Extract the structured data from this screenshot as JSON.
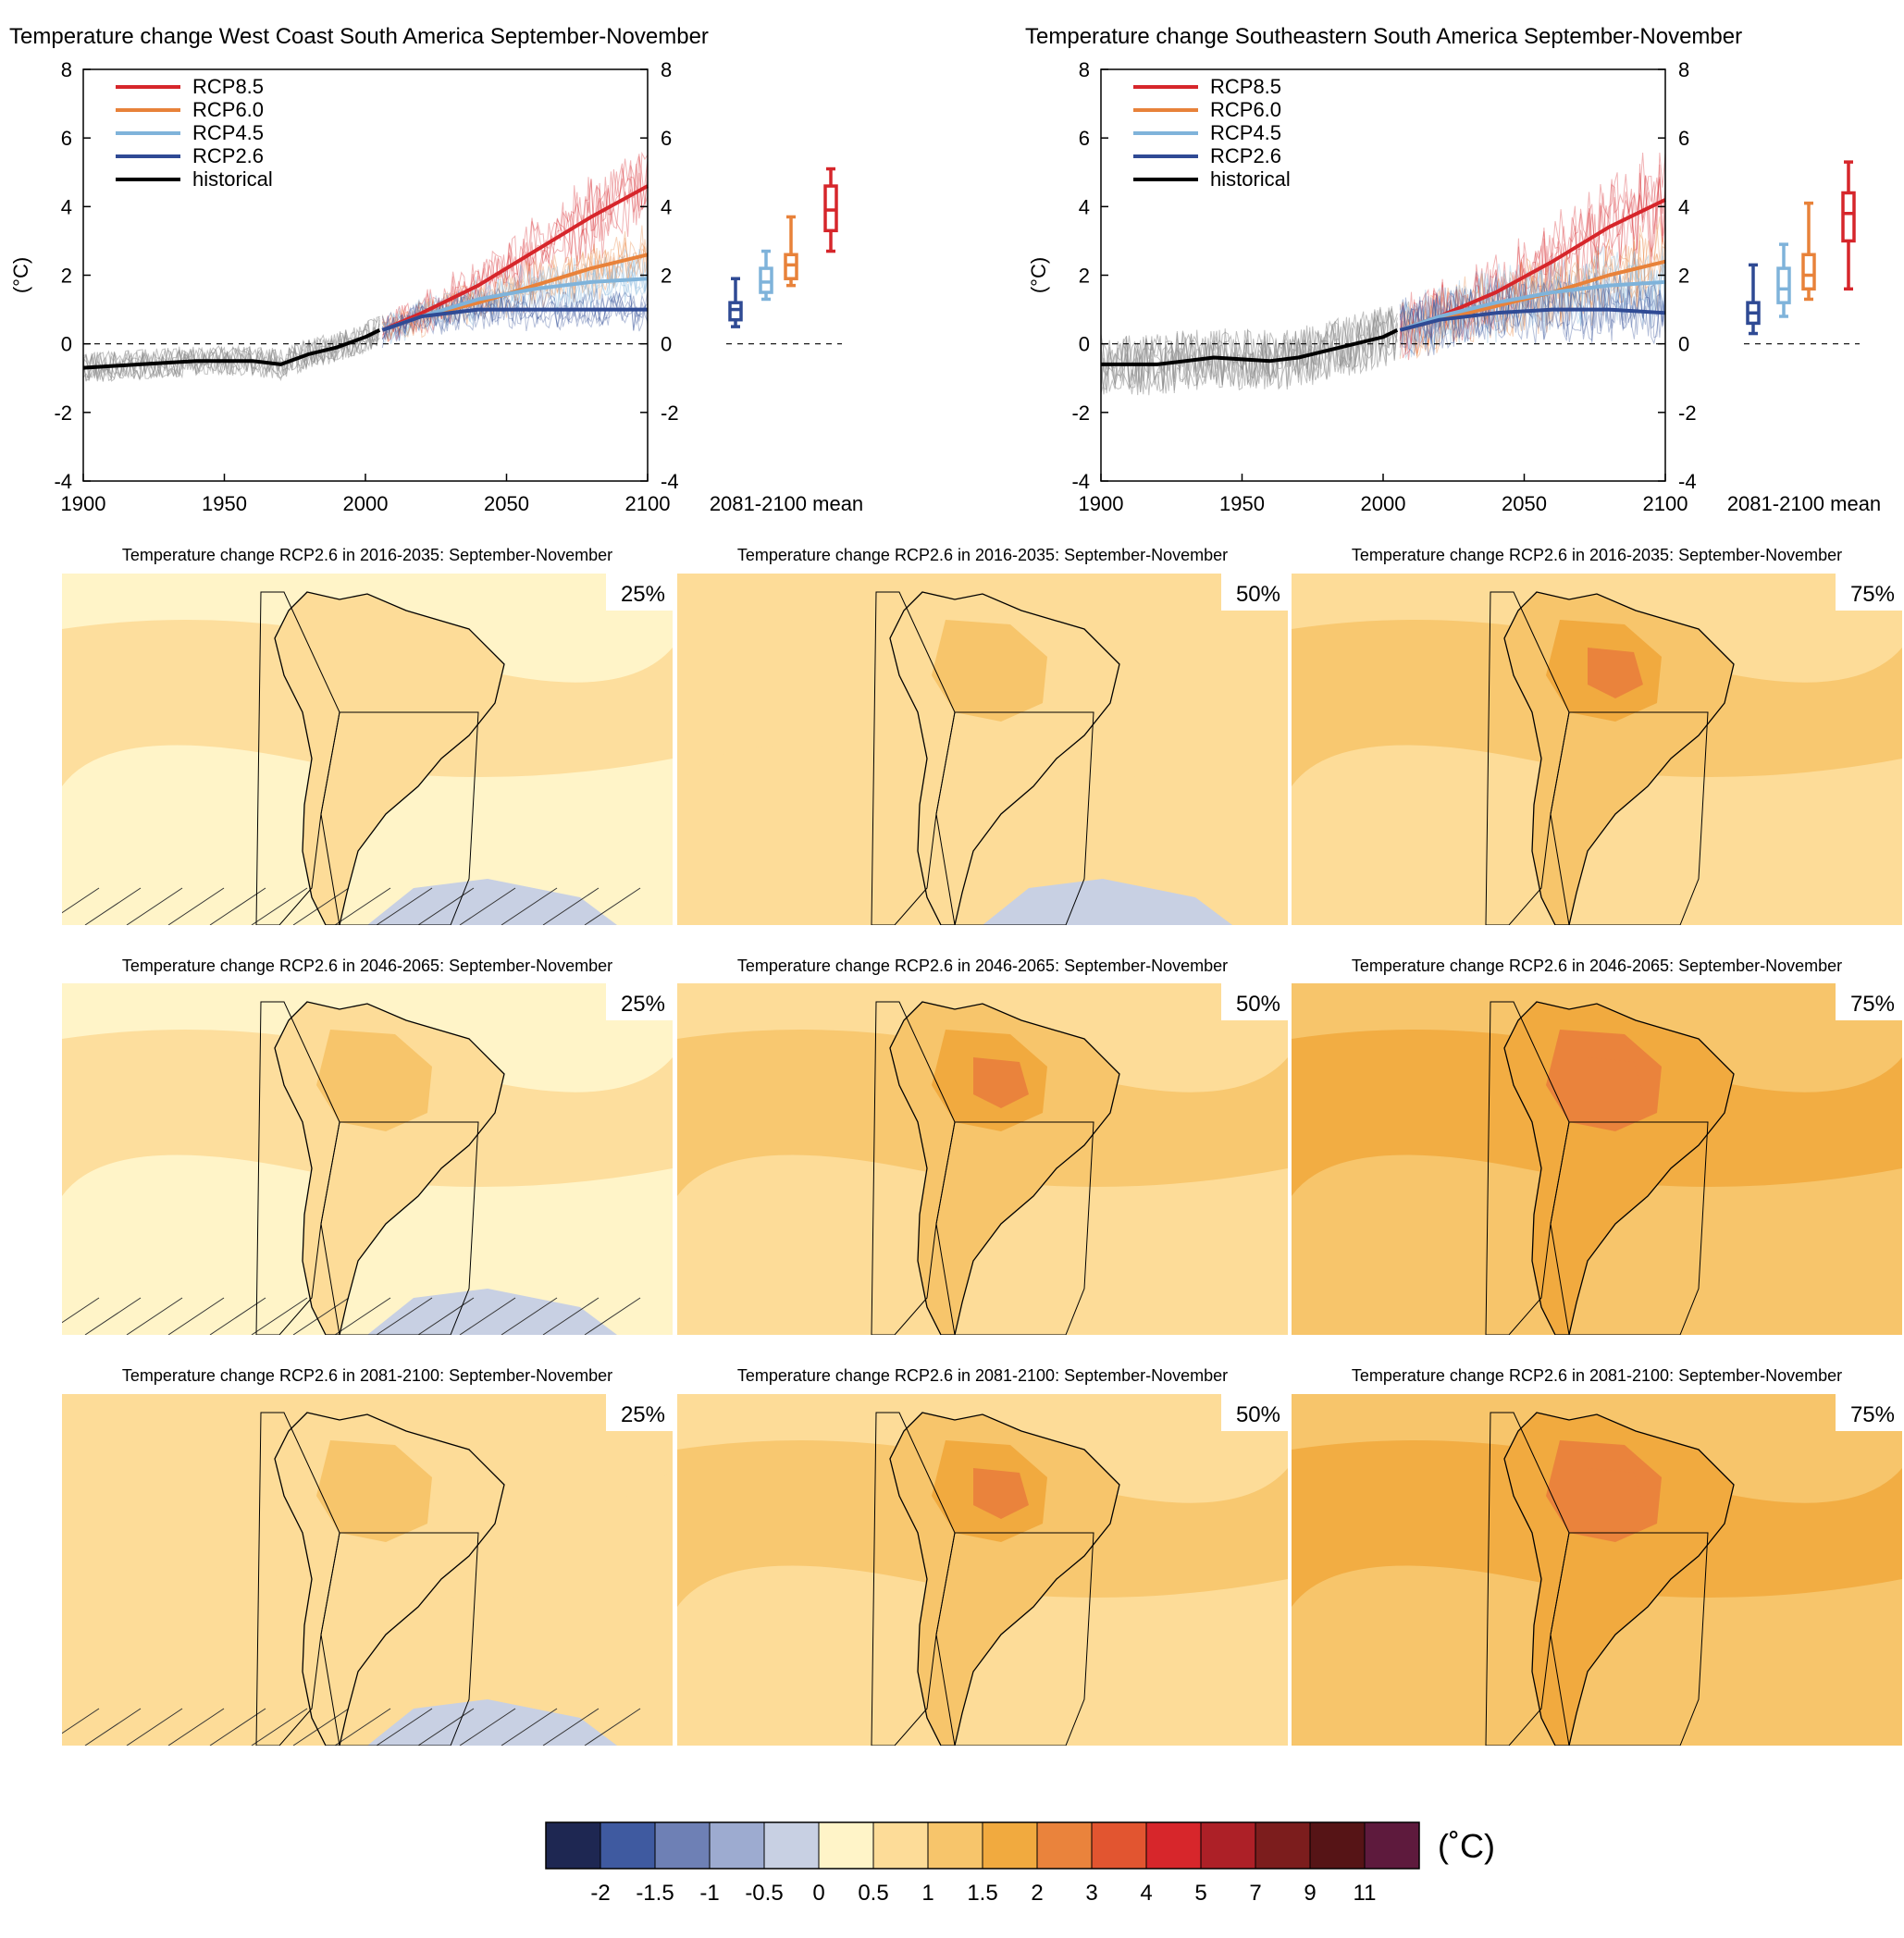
{
  "colors": {
    "rcp85": "#d6262b",
    "rcp60": "#e8823a",
    "rcp45": "#7fb3da",
    "rcp26": "#2f4a94",
    "historical": "#000000",
    "historical_spread": "#8c8c8c"
  },
  "chart_data": [
    {
      "type": "line",
      "title": "Temperature change West Coast South America September-November",
      "ylabel": "(°C)",
      "xlim": [
        1900,
        2100
      ],
      "ylim": [
        -4,
        8
      ],
      "x_ticks": [
        "1900",
        "1950",
        "2000",
        "2050",
        "2100"
      ],
      "y_ticks": [
        "-4",
        "-2",
        "0",
        "2",
        "4",
        "6",
        "8"
      ],
      "right_y_ticks": [
        "-4",
        "-2",
        "0",
        "2",
        "4",
        "6",
        "8"
      ],
      "box_label": "2081-2100 mean",
      "legend_position": "top-left",
      "series": [
        {
          "name": "RCP8.5",
          "x": [
            2006,
            2020,
            2040,
            2060,
            2080,
            2100
          ],
          "values": [
            0.4,
            0.9,
            1.7,
            2.7,
            3.7,
            4.6
          ]
        },
        {
          "name": "RCP6.0",
          "x": [
            2006,
            2020,
            2040,
            2060,
            2080,
            2100
          ],
          "values": [
            0.4,
            0.8,
            1.2,
            1.7,
            2.2,
            2.6
          ]
        },
        {
          "name": "RCP4.5",
          "x": [
            2006,
            2020,
            2040,
            2060,
            2080,
            2100
          ],
          "values": [
            0.4,
            0.8,
            1.3,
            1.6,
            1.8,
            1.9
          ]
        },
        {
          "name": "RCP2.6",
          "x": [
            2006,
            2020,
            2040,
            2060,
            2080,
            2100
          ],
          "values": [
            0.4,
            0.8,
            1.0,
            1.0,
            1.0,
            1.0
          ]
        },
        {
          "name": "historical",
          "x": [
            1900,
            1920,
            1940,
            1960,
            1970,
            1980,
            1990,
            2000,
            2005
          ],
          "values": [
            -0.7,
            -0.6,
            -0.5,
            -0.5,
            -0.6,
            -0.3,
            -0.1,
            0.2,
            0.4
          ]
        }
      ],
      "boxes": [
        {
          "name": "RCP2.6",
          "min": 0.5,
          "q1": 0.7,
          "median": 1.0,
          "q3": 1.2,
          "max": 1.9
        },
        {
          "name": "RCP4.5",
          "min": 1.3,
          "q1": 1.5,
          "median": 1.8,
          "q3": 2.2,
          "max": 2.7
        },
        {
          "name": "RCP6.0",
          "min": 1.7,
          "q1": 1.9,
          "median": 2.3,
          "q3": 2.6,
          "max": 3.7
        },
        {
          "name": "RCP8.5",
          "min": 2.7,
          "q1": 3.3,
          "median": 3.9,
          "q3": 4.6,
          "max": 5.1
        }
      ]
    },
    {
      "type": "line",
      "title": "Temperature change Southeastern South America September-November",
      "ylabel": "(°C)",
      "xlim": [
        1900,
        2100
      ],
      "ylim": [
        -4,
        8
      ],
      "x_ticks": [
        "1900",
        "1950",
        "2000",
        "2050",
        "2100"
      ],
      "y_ticks": [
        "-4",
        "-2",
        "0",
        "2",
        "4",
        "6",
        "8"
      ],
      "right_y_ticks": [
        "-4",
        "-2",
        "0",
        "2",
        "4",
        "6",
        "8"
      ],
      "box_label": "2081-2100 mean",
      "legend_position": "top-left",
      "series": [
        {
          "name": "RCP8.5",
          "x": [
            2006,
            2020,
            2040,
            2060,
            2080,
            2100
          ],
          "values": [
            0.4,
            0.8,
            1.5,
            2.4,
            3.4,
            4.2
          ]
        },
        {
          "name": "RCP6.0",
          "x": [
            2006,
            2020,
            2040,
            2060,
            2080,
            2100
          ],
          "values": [
            0.4,
            0.7,
            1.1,
            1.5,
            2.0,
            2.4
          ]
        },
        {
          "name": "RCP4.5",
          "x": [
            2006,
            2020,
            2040,
            2060,
            2080,
            2100
          ],
          "values": [
            0.4,
            0.8,
            1.2,
            1.5,
            1.7,
            1.8
          ]
        },
        {
          "name": "RCP2.6",
          "x": [
            2006,
            2020,
            2040,
            2060,
            2080,
            2100
          ],
          "values": [
            0.4,
            0.7,
            0.9,
            1.0,
            1.0,
            0.9
          ]
        },
        {
          "name": "historical",
          "x": [
            1900,
            1920,
            1940,
            1960,
            1970,
            1980,
            1990,
            2000,
            2005
          ],
          "values": [
            -0.6,
            -0.6,
            -0.4,
            -0.5,
            -0.4,
            -0.2,
            0.0,
            0.2,
            0.4
          ]
        }
      ],
      "boxes": [
        {
          "name": "RCP2.6",
          "min": 0.3,
          "q1": 0.6,
          "median": 0.9,
          "q3": 1.2,
          "max": 2.3
        },
        {
          "name": "RCP4.5",
          "min": 0.8,
          "q1": 1.2,
          "median": 1.6,
          "q3": 2.2,
          "max": 2.9
        },
        {
          "name": "RCP6.0",
          "min": 1.3,
          "q1": 1.6,
          "median": 2.0,
          "q3": 2.6,
          "max": 4.1
        },
        {
          "name": "RCP8.5",
          "min": 1.6,
          "q1": 3.0,
          "median": 3.8,
          "q3": 4.4,
          "max": 5.3
        }
      ]
    }
  ],
  "maps": {
    "rows": [
      {
        "title": "Temperature change RCP2.6 in 2016-2035: September-November",
        "levels": [
          0.5,
          0.8,
          1.1
        ]
      },
      {
        "title": "Temperature change RCP2.6 in 2046-2065: September-November",
        "levels": [
          0.75,
          1.1,
          1.6
        ]
      },
      {
        "title": "Temperature change RCP2.6 in 2081-2100: September-November",
        "levels": [
          0.8,
          1.2,
          1.7
        ]
      }
    ],
    "percentiles": [
      "25%",
      "50%",
      "75%"
    ]
  },
  "colorbar": {
    "unit": "(˚C)",
    "labels": [
      "-2",
      "-1.5",
      "-1",
      "-0.5",
      "0",
      "0.5",
      "1",
      "1.5",
      "2",
      "3",
      "4",
      "5",
      "7",
      "9",
      "11"
    ],
    "colors": [
      "#1e2752",
      "#3f5aa0",
      "#6e80b5",
      "#9dabd0",
      "#c8d0e3",
      "#fff4c8",
      "#fddc98",
      "#f7c56b",
      "#f1aa3f",
      "#ea833c",
      "#e25530",
      "#d7262b",
      "#ad2027",
      "#7c1d1d",
      "#561416",
      "#5e1a3d"
    ]
  }
}
